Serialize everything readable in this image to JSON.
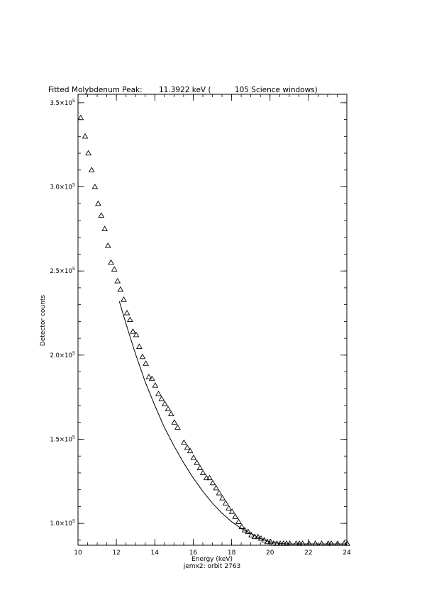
{
  "chart_data": {
    "type": "scatter",
    "title": "Fitted Molybdenum Peak:       11.3922 keV (          105 Science windows)",
    "xlabel": "Energy (keV)",
    "ylabel": "Detector counts",
    "footer": "jemx2: orbit 2763",
    "xlim": [
      10,
      24
    ],
    "ylim": [
      87000,
      355000
    ],
    "x_ticks": [
      {
        "value": 10,
        "label": "10"
      },
      {
        "value": 12,
        "label": "12"
      },
      {
        "value": 14,
        "label": "14"
      },
      {
        "value": 16,
        "label": "16"
      },
      {
        "value": 18,
        "label": "18"
      },
      {
        "value": 20,
        "label": "20"
      },
      {
        "value": 22,
        "label": "22"
      },
      {
        "value": 24,
        "label": "24"
      }
    ],
    "y_ticks": [
      {
        "value": 100000,
        "mantissa": "1.0×10",
        "exp": "5"
      },
      {
        "value": 150000,
        "mantissa": "1.5×10",
        "exp": "5"
      },
      {
        "value": 200000,
        "mantissa": "2.0×10",
        "exp": "5"
      },
      {
        "value": 250000,
        "mantissa": "2.5×10",
        "exp": "5"
      },
      {
        "value": 300000,
        "mantissa": "3.0×10",
        "exp": "5"
      },
      {
        "value": 350000,
        "mantissa": "3.5×10",
        "exp": "5"
      }
    ],
    "x_minor_step": 0.5,
    "y_minor_step": 10000,
    "series": [
      {
        "marker": "triangle",
        "x": [
          10.14,
          10.37,
          10.54,
          10.71,
          10.88,
          11.05,
          11.21,
          11.39,
          11.56,
          11.72,
          11.89,
          12.06,
          12.21,
          12.38,
          12.55,
          12.71,
          12.86,
          13.03,
          13.19,
          13.36,
          13.53,
          13.69,
          13.85,
          14.02,
          14.19,
          14.35,
          14.52,
          14.69,
          14.85,
          15.02,
          15.19,
          15.52,
          15.69,
          15.84,
          16.02,
          16.19,
          16.35,
          16.51,
          16.69,
          16.85,
          17.02,
          17.19,
          17.35,
          17.52,
          17.69,
          17.85,
          18.02,
          18.19,
          18.36,
          18.53,
          18.69,
          18.86,
          19.03,
          19.2,
          19.37,
          19.53,
          19.7,
          19.86,
          20.03,
          20.19,
          20.36,
          20.53,
          20.7,
          20.86,
          21.03,
          21.36,
          21.53,
          21.7,
          22.03,
          22.36,
          22.69,
          23.03,
          23.19,
          23.52,
          23.86,
          24.02
        ],
        "y": [
          341000,
          330000,
          320000,
          310000,
          300000,
          290000,
          283000,
          275000,
          265000,
          255000,
          251000,
          244000,
          239000,
          233000,
          225000,
          221000,
          214000,
          212000,
          205000,
          199000,
          195000,
          187000,
          186000,
          182000,
          177000,
          174000,
          171000,
          168000,
          165000,
          160000,
          157000,
          148000,
          145000,
          143000,
          139000,
          136000,
          133000,
          130000,
          127000,
          127000,
          124000,
          121000,
          118000,
          115000,
          112000,
          109000,
          107000,
          104000,
          101000,
          98000,
          96000,
          95000,
          93000,
          92000,
          92000,
          91000,
          90000,
          89000,
          89000,
          88000,
          88000,
          88000,
          88000,
          88000,
          88000,
          88000,
          88000,
          88000,
          88000,
          88000,
          88000,
          88000,
          88000,
          88000,
          88000,
          88000
        ]
      },
      {
        "marker": "line",
        "x": [
          12.15,
          12.5,
          13.0,
          13.5,
          14.0,
          14.5,
          15.0,
          15.5,
          16.0,
          16.5,
          17.0,
          17.5,
          18.0,
          18.5,
          19.0,
          19.5,
          20.0,
          20.5,
          21.0,
          21.5,
          22.0,
          22.5,
          23.0,
          23.5,
          24.0
        ],
        "y": [
          232000,
          218500,
          200500,
          184000,
          170000,
          157000,
          146000,
          136000,
          127000,
          119000,
          112000,
          106000,
          101000,
          97000,
          94000,
          91000,
          89000,
          88000,
          87800,
          87800,
          87800,
          87800,
          87800,
          87800,
          87800
        ]
      }
    ]
  }
}
